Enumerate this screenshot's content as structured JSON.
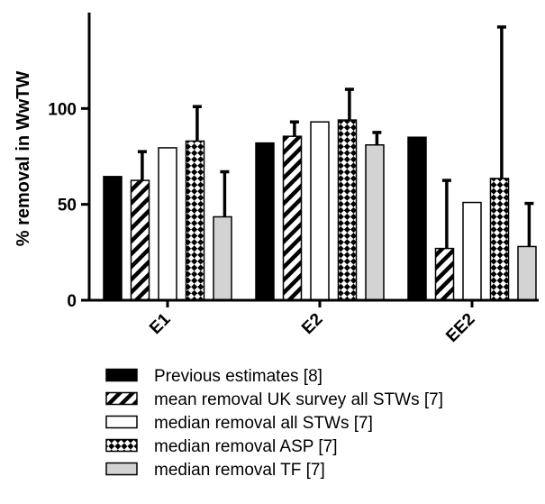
{
  "chart_data": {
    "type": "bar",
    "ylabel": "% removal in WwTW",
    "ylim": [
      0,
      150
    ],
    "yticks": [
      0,
      50,
      100
    ],
    "categories": [
      "E1",
      "E2",
      "EE2"
    ],
    "series": [
      {
        "name": "Previous estimates [8]",
        "pattern": "solid",
        "values": [
          64.5,
          82,
          85
        ],
        "error_plus": [
          null,
          null,
          null
        ]
      },
      {
        "name": "mean removal UK survey all STWs [7]",
        "pattern": "hatch",
        "values": [
          62.5,
          85.5,
          27
        ],
        "error_plus": [
          15,
          7.5,
          35.5
        ]
      },
      {
        "name": "median removal all STWs [7]",
        "pattern": "white",
        "values": [
          79.5,
          93,
          51
        ],
        "error_plus": [
          null,
          null,
          null
        ]
      },
      {
        "name": "median removal ASP [7]",
        "pattern": "check",
        "values": [
          83,
          94,
          63.5
        ],
        "error_plus": [
          18,
          16,
          79
        ]
      },
      {
        "name": "median removal TF [7]",
        "pattern": "gray",
        "values": [
          43.5,
          81,
          28
        ],
        "error_plus": [
          23.5,
          6.5,
          22.5
        ]
      }
    ],
    "grid": false,
    "legend_position": "bottom"
  }
}
